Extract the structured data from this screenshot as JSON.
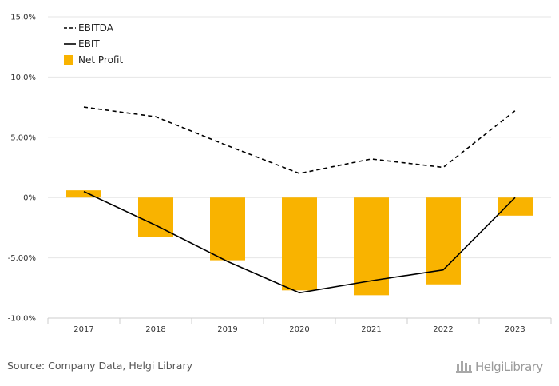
{
  "chart_data": {
    "type": "bar",
    "categories": [
      "2017",
      "2018",
      "2019",
      "2020",
      "2021",
      "2022",
      "2023"
    ],
    "series": [
      {
        "name": "EBITDA",
        "type": "line",
        "style": "dashed",
        "color": "#000000",
        "values": [
          7.5,
          6.7,
          4.3,
          2.0,
          3.2,
          2.5,
          7.2
        ]
      },
      {
        "name": "EBIT",
        "type": "line",
        "style": "solid",
        "color": "#000000",
        "values": [
          0.5,
          -2.3,
          -5.3,
          -7.9,
          -6.9,
          -6.0,
          0.0
        ]
      },
      {
        "name": "Net Profit",
        "type": "bar",
        "color": "#F9B300",
        "values": [
          0.6,
          -3.3,
          -5.2,
          -7.7,
          -8.1,
          -7.2,
          -1.5
        ]
      }
    ],
    "y_ticks": [
      "15.0%",
      "10.0%",
      "5.00%",
      "0%",
      "-5.00%",
      "-10.0%"
    ],
    "y_tick_values": [
      15,
      10,
      5,
      0,
      -5,
      -10
    ],
    "ylim": [
      -10,
      15
    ],
    "grid": true,
    "legend_position": "top-left"
  },
  "footer": {
    "source": "Source: Company Data, Helgi Library",
    "logo_text": "HelgiLibrary"
  }
}
